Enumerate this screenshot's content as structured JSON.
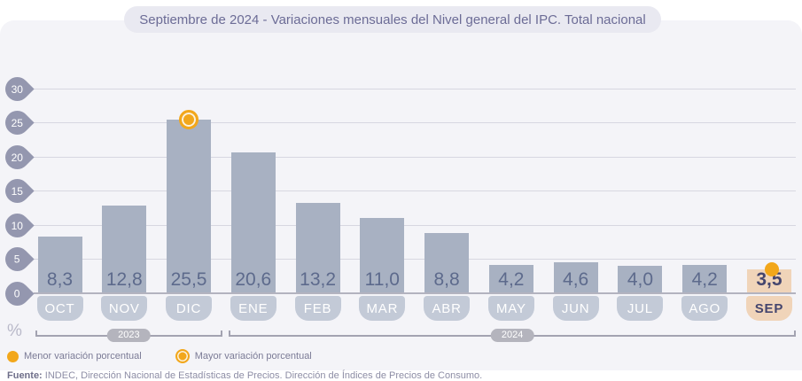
{
  "title": "Septiembre de 2024 - Variaciones mensuales del Nivel general del IPC. Total nacional",
  "chart_data": {
    "type": "bar",
    "categories": [
      "OCT",
      "NOV",
      "DIC",
      "ENE",
      "FEB",
      "MAR",
      "ABR",
      "MAY",
      "JUN",
      "JUL",
      "AGO",
      "SEP"
    ],
    "values": [
      8.3,
      12.8,
      25.5,
      20.6,
      13.2,
      11.0,
      8.8,
      4.2,
      4.6,
      4.0,
      4.2,
      3.5
    ],
    "value_labels": [
      "8,3",
      "12,8",
      "25,5",
      "20,6",
      "13,2",
      "11,0",
      "8,8",
      "4,2",
      "4,6",
      "4,0",
      "4,2",
      "3,5"
    ],
    "yticks": [
      30,
      25,
      20,
      15,
      10,
      5,
      0
    ],
    "ylim": [
      0,
      30
    ],
    "ylabel": "%",
    "grid": true,
    "highlight_index": 11,
    "max_marker_index": 2,
    "min_marker_index": 11,
    "year_groups": [
      {
        "label": "2023",
        "start_index": 0,
        "end_index": 2
      },
      {
        "label": "2024",
        "start_index": 3,
        "end_index": 11
      }
    ],
    "colors": {
      "bar": "#a8b1c2",
      "bar_highlight": "#f0d4b9",
      "value_text": "#5d6a8c",
      "value_text_highlight": "#45466e",
      "month_tab": "#c3cad7",
      "month_tab_text": "#ffffff",
      "month_tab_highlight": "#f0d4b9",
      "month_tab_text_highlight": "#45466e",
      "marker_yellow": "#f2a71b",
      "axis_badge": "#9497af",
      "gridline": "#d7d7e1"
    }
  },
  "axis": {
    "percent_label": "%"
  },
  "legend": [
    {
      "icon": "solid-dot",
      "label": "Menor variación porcentual"
    },
    {
      "icon": "ringed-dot",
      "label": "Mayor variación porcentual"
    }
  ],
  "footer": {
    "source_label": "Fuente:",
    "source_text": " INDEC, Dirección Nacional de Estadísticas de Precios. Dirección de Índices de Precios de Consumo."
  }
}
